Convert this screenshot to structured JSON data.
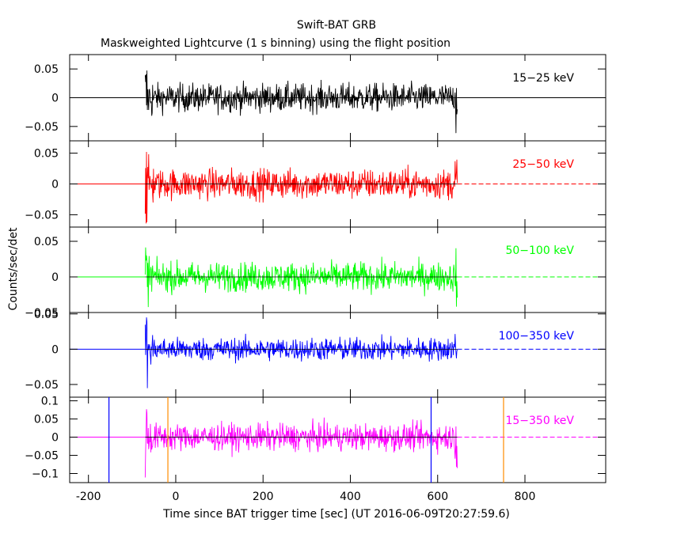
{
  "header": {
    "title": "Swift-BAT GRB",
    "subtitle": "Maskweighted Lightcurve (1 s binning) using the flight position"
  },
  "axes": {
    "xlabel": "Time since BAT trigger time [sec] (UT 2016-06-09T20:27:59.6)",
    "ylabel": "Counts/sec/det"
  },
  "chart_data": {
    "type": "line",
    "xlim": [
      -243,
      985
    ],
    "x_ticks": [
      -200,
      0,
      200,
      400,
      600,
      800
    ],
    "x_tick_labels": [
      "-200",
      "0",
      "200",
      "400",
      "600",
      "800"
    ],
    "data_range": [
      -70,
      645
    ],
    "flat_before": -243,
    "flat_after": 985,
    "vertical_markers": [
      {
        "x": -153,
        "color": "#0000ff"
      },
      {
        "x": -18,
        "color": "#ff8c00"
      },
      {
        "x": 585,
        "color": "#0000ff"
      },
      {
        "x": 751,
        "color": "#ff8c00"
      }
    ],
    "panels": [
      {
        "name": "15-25 keV",
        "label": "15−25 keV",
        "color": "#000000",
        "ylim": [
          -0.075,
          0.075
        ],
        "y_ticks": [
          0.05,
          0,
          -0.05
        ],
        "y_tick_labels": [
          "0.05",
          "0",
          "−0.05"
        ],
        "noise_std": 0.012,
        "extends_after": false,
        "marker_panel": false
      },
      {
        "name": "25-50 keV",
        "label": "25−50 keV",
        "color": "#ff0000",
        "ylim": [
          -0.07,
          0.07
        ],
        "y_ticks": [
          0.05,
          0,
          -0.05
        ],
        "y_tick_labels": [
          "0.05",
          "0",
          "−0.05"
        ],
        "noise_std": 0.012,
        "extends_after": true,
        "marker_panel": false
      },
      {
        "name": "50-100 keV",
        "label": "50−100 keV",
        "color": "#00ff00",
        "ylim": [
          -0.05,
          0.07
        ],
        "y_ticks": [
          0.05,
          0,
          -0.05
        ],
        "y_tick_labels": [
          "0.05",
          "0",
          "−0.05"
        ],
        "noise_std": 0.01,
        "extends_after": true,
        "marker_panel": false
      },
      {
        "name": "100-350 keV",
        "label": "100−350 keV",
        "color": "#0000ff",
        "ylim": [
          -0.068,
          0.052
        ],
        "y_ticks": [
          0.05,
          0,
          -0.05
        ],
        "y_tick_labels": [
          "0.05",
          "0",
          "−0.05"
        ],
        "noise_std": 0.008,
        "extends_after": true,
        "marker_panel": false
      },
      {
        "name": "15-350 keV",
        "label": "15−350 keV",
        "color": "#ff00ff",
        "ylim": [
          -0.125,
          0.11
        ],
        "y_ticks": [
          0.1,
          0.05,
          0,
          -0.05,
          -0.1
        ],
        "y_tick_labels": [
          "0.1",
          "0.05",
          "0",
          "−0.05",
          "−0.1"
        ],
        "noise_std": 0.018,
        "extends_after": true,
        "marker_panel": true
      }
    ]
  }
}
